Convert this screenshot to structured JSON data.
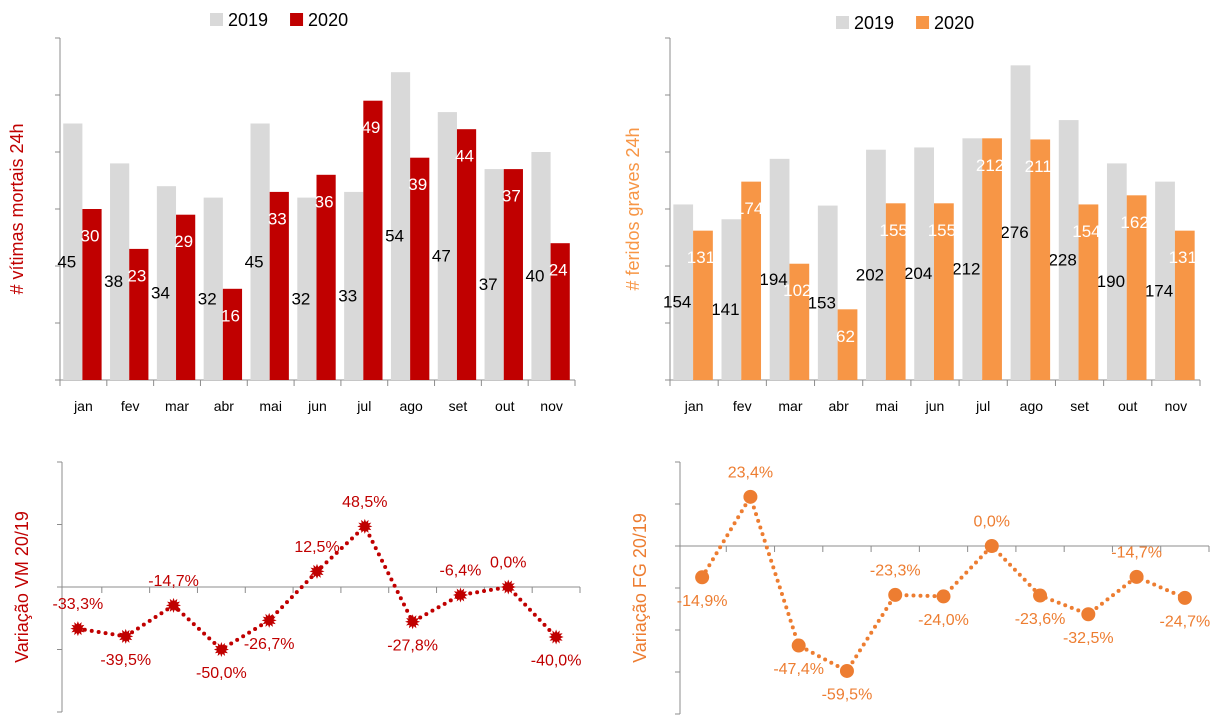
{
  "chart_data": [
    {
      "type": "bar",
      "y_label": "# vítimas mortais 24h",
      "y_label_color": "#c00000",
      "legend": "top",
      "categories": [
        "jan",
        "fev",
        "mar",
        "abr",
        "mai",
        "jun",
        "jul",
        "ago",
        "set",
        "out",
        "nov"
      ],
      "series": [
        {
          "name": "2019",
          "color": "#d9d9d9",
          "label_color": "#000000",
          "values": [
            45,
            38,
            34,
            32,
            45,
            32,
            33,
            54,
            47,
            37,
            40
          ]
        },
        {
          "name": "2020",
          "color": "#c00000",
          "label_color": "#ffffff",
          "values": [
            30,
            23,
            29,
            16,
            33,
            36,
            49,
            39,
            44,
            37,
            24
          ]
        }
      ],
      "ylim": [
        0,
        60
      ],
      "yticks": [
        0,
        10,
        20,
        30,
        40,
        50,
        60
      ]
    },
    {
      "type": "bar",
      "y_label": "# feridos graves 24h",
      "y_label_color": "#f79646",
      "legend": "top",
      "categories": [
        "jan",
        "fev",
        "mar",
        "abr",
        "mai",
        "jun",
        "jul",
        "ago",
        "set",
        "out",
        "nov"
      ],
      "series": [
        {
          "name": "2019",
          "color": "#d9d9d9",
          "label_color": "#000000",
          "values": [
            154,
            141,
            194,
            153,
            202,
            204,
            212,
            276,
            228,
            190,
            174
          ]
        },
        {
          "name": "2020",
          "color": "#f79646",
          "label_color": "#ffffff",
          "values": [
            131,
            174,
            102,
            62,
            155,
            155,
            212,
            211,
            154,
            162,
            131
          ]
        }
      ],
      "ylim": [
        0,
        300
      ],
      "yticks": [
        0,
        50,
        100,
        150,
        200,
        250,
        300
      ]
    },
    {
      "type": "line",
      "y_label": "Variação VM 20/19",
      "y_label_color": "#c00000",
      "categories": [
        null,
        null,
        null,
        null,
        null,
        null,
        null,
        null,
        null,
        null,
        null
      ],
      "values": [
        -33.3,
        -39.5,
        -14.7,
        -50.0,
        -26.7,
        12.5,
        48.5,
        -27.8,
        -6.4,
        0.0,
        -40.0
      ],
      "value_labels": [
        "-33,3%",
        "-39,5%",
        "-14,7%",
        "-50,0%",
        "-26,7%",
        "12,5%",
        "48,5%",
        "-27,8%",
        "-6,4%",
        "0,0%",
        "-40,0%"
      ],
      "color": "#c00000",
      "marker": "star",
      "line_style": "dotted",
      "ylim": [
        -100,
        100
      ],
      "yticks": [
        -100,
        -50,
        0,
        50,
        100
      ]
    },
    {
      "type": "line",
      "y_label": "Variação FG 20/19",
      "y_label_color": "#ed7d31",
      "categories": [
        null,
        null,
        null,
        null,
        null,
        null,
        null,
        null,
        null,
        null,
        null
      ],
      "values": [
        -14.9,
        23.4,
        -47.4,
        -59.5,
        -23.3,
        -24.0,
        0.0,
        -23.6,
        -32.5,
        -14.7,
        -24.7
      ],
      "value_labels": [
        "-14,9%",
        "23,4%",
        "-47,4%",
        "-59,5%",
        "-23,3%",
        "-24,0%",
        "0,0%",
        "-23,6%",
        "-32,5%",
        "-14,7%",
        "-24,7%"
      ],
      "color": "#ed7d31",
      "marker": "circle",
      "line_style": "dotted",
      "ylim": [
        -80,
        40
      ],
      "yticks": [
        -80,
        -60,
        -40,
        -20,
        0,
        20,
        40
      ]
    }
  ]
}
